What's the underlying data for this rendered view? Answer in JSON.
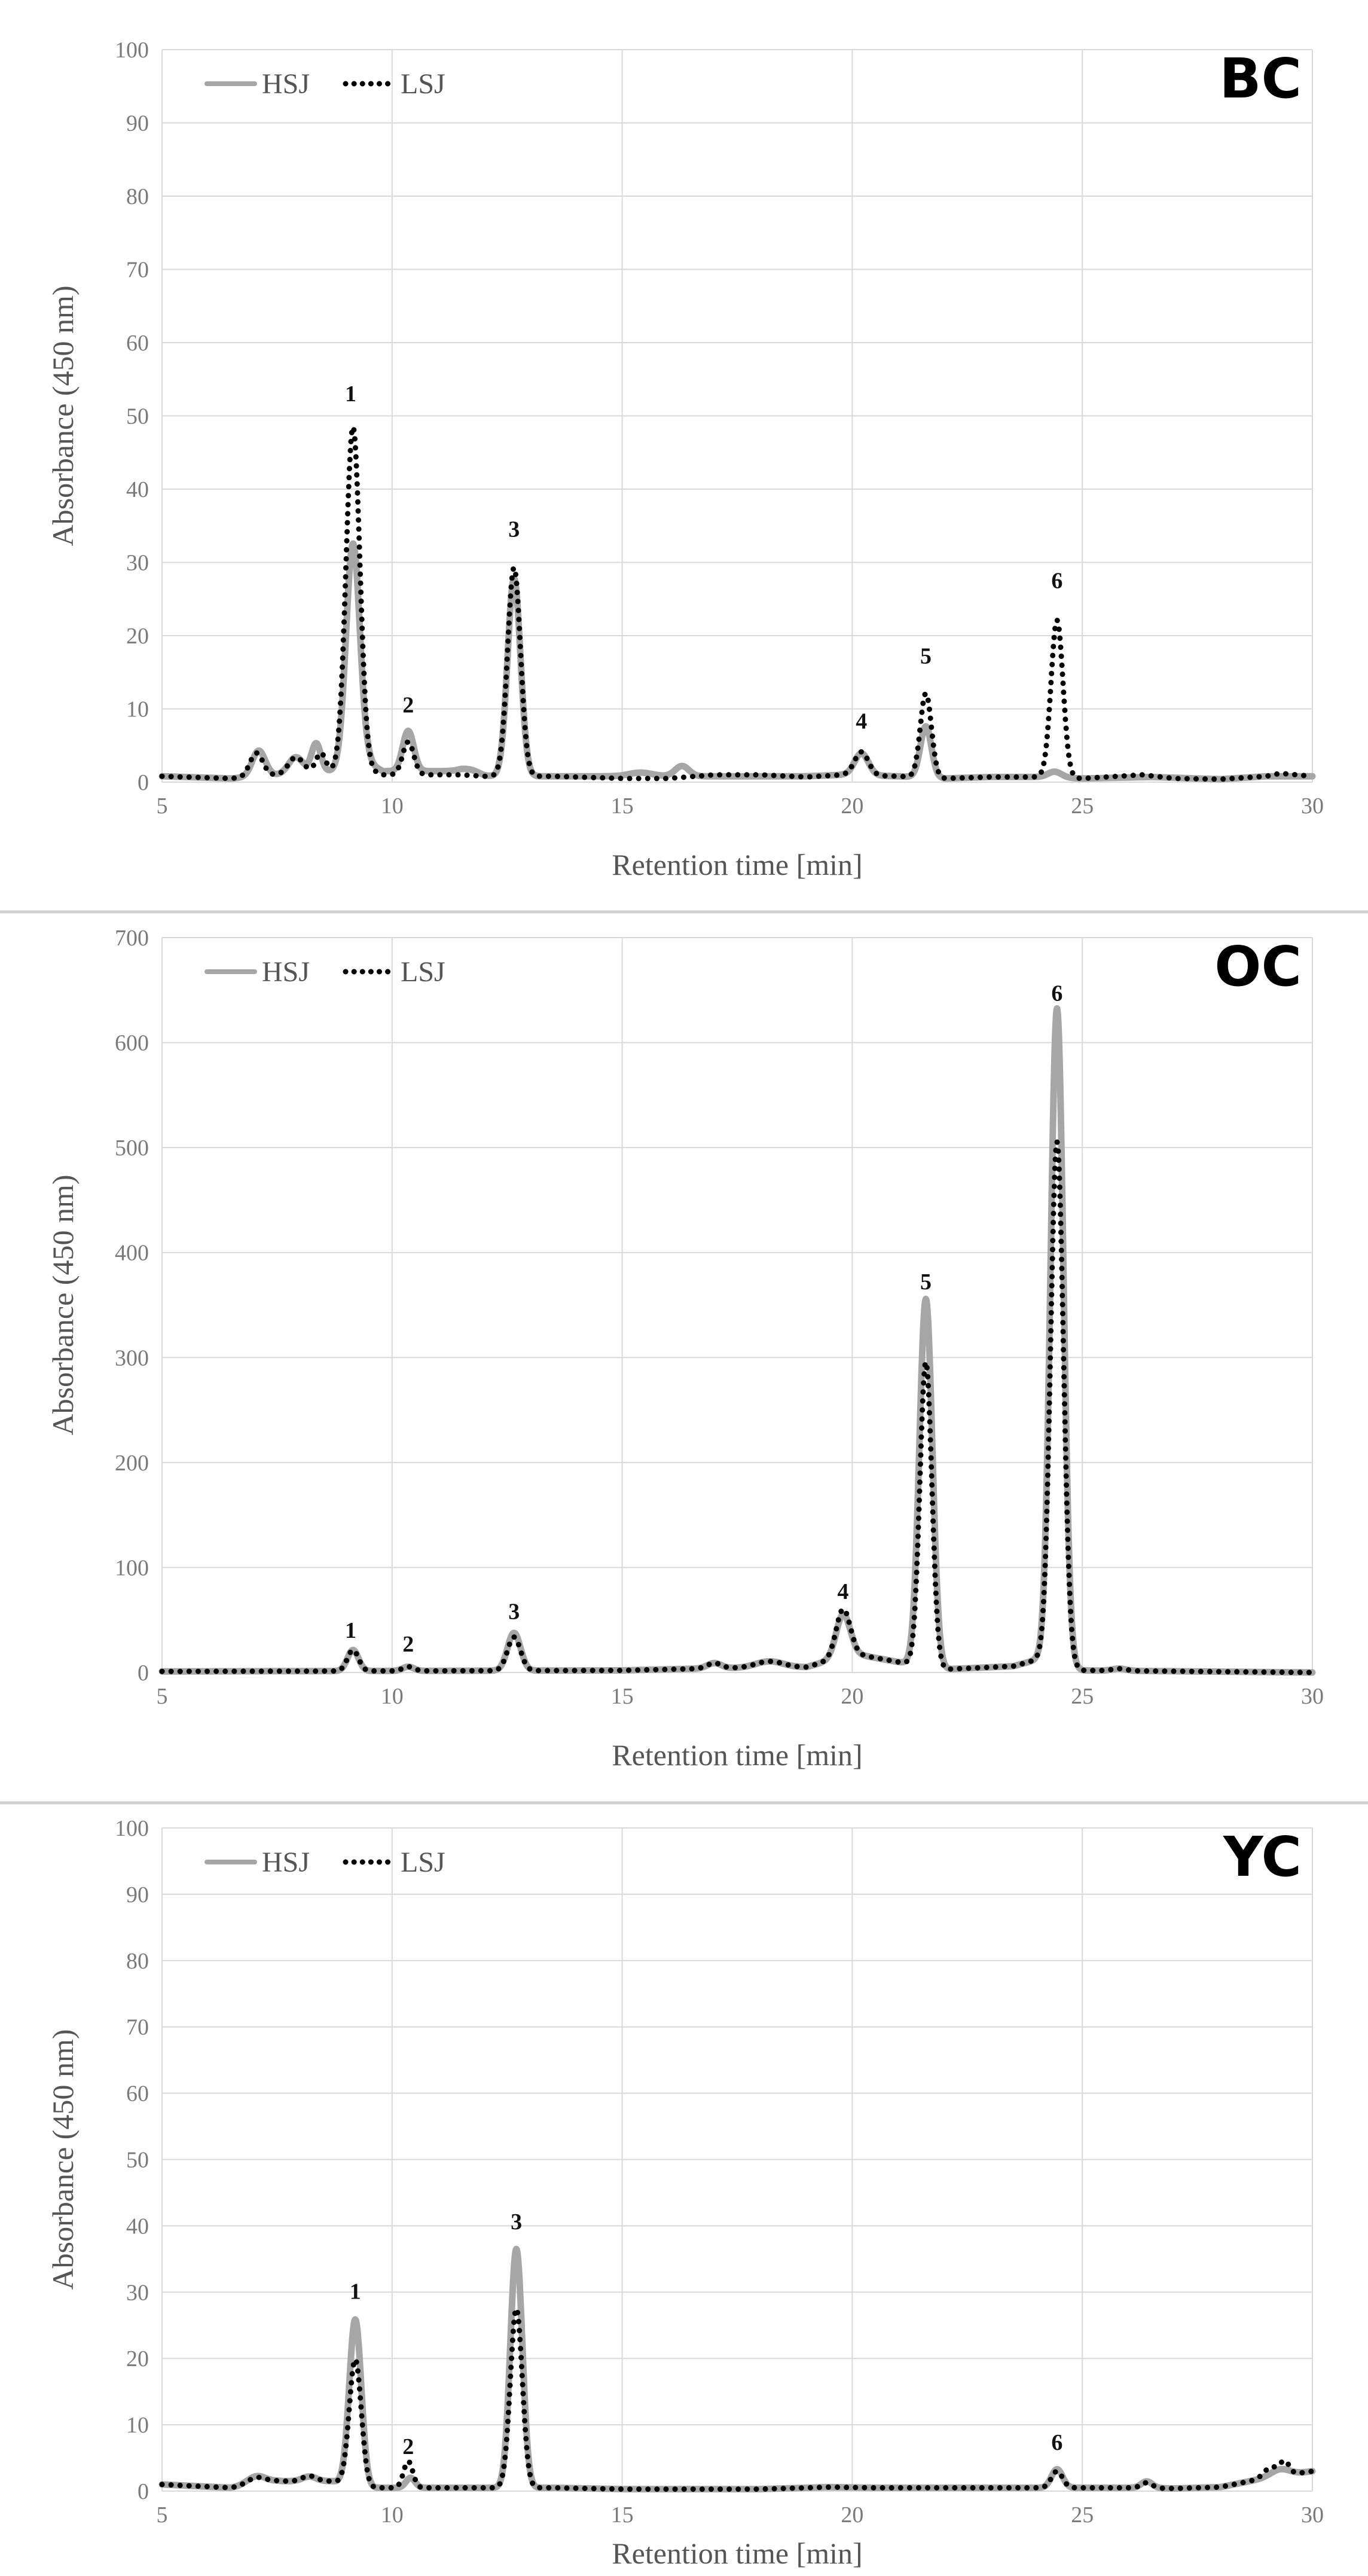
{
  "figure": {
    "description_free": true,
    "colors": {
      "hsj": "#a6a6a6",
      "lsj": "#000000",
      "grid": "#d9d9d9",
      "separator": "#d0d0d0"
    }
  },
  "chart_data": [
    {
      "type": "line",
      "title": "BC",
      "xlabel": "Retention time [min]",
      "ylabel": "Absorbance (450 nm)",
      "xlim": [
        5,
        30
      ],
      "ylim": [
        0,
        100
      ],
      "xticks": [
        5,
        10,
        15,
        20,
        25,
        30
      ],
      "yticks": [
        0,
        10,
        20,
        30,
        40,
        50,
        60,
        70,
        80,
        90,
        100
      ],
      "grid": true,
      "legend": {
        "position": "top-left",
        "entries": [
          "HSJ",
          "LSJ"
        ]
      },
      "series": [
        {
          "name": "HSJ",
          "style": "solid",
          "baseline": [
            [
              5.0,
              0.8
            ],
            [
              6.5,
              0.5
            ],
            [
              7.5,
              1.0
            ],
            [
              8.0,
              1.5
            ],
            [
              8.7,
              1.5
            ],
            [
              9.5,
              2.5
            ],
            [
              9.8,
              1.5
            ],
            [
              10.8,
              1.5
            ],
            [
              11.5,
              1.5
            ],
            [
              12.0,
              0.8
            ],
            [
              13.5,
              0.8
            ],
            [
              15.0,
              0.8
            ],
            [
              16.0,
              0.8
            ],
            [
              17.0,
              0.8
            ],
            [
              19.0,
              0.8
            ],
            [
              19.8,
              1.0
            ],
            [
              21.0,
              0.8
            ],
            [
              22.0,
              0.5
            ],
            [
              23.0,
              0.7
            ],
            [
              24.0,
              0.7
            ],
            [
              25.0,
              0.5
            ],
            [
              26.5,
              0.7
            ],
            [
              28.0,
              0.4
            ],
            [
              29.0,
              0.8
            ],
            [
              30.0,
              0.8
            ]
          ],
          "peaks": [
            [
              7.1,
              3.5,
              0.14
            ],
            [
              7.9,
              2.0,
              0.15
            ],
            [
              8.35,
              3.8,
              0.1
            ],
            [
              9.15,
              30.5,
              0.15
            ],
            [
              10.35,
              5.5,
              0.12
            ],
            [
              11.7,
              0.5,
              0.2
            ],
            [
              12.65,
              27.0,
              0.14
            ],
            [
              15.4,
              0.5,
              0.25
            ],
            [
              16.3,
              1.4,
              0.15
            ],
            [
              20.2,
              3.0,
              0.15
            ],
            [
              21.6,
              7.0,
              0.12
            ],
            [
              24.4,
              0.8,
              0.15
            ]
          ]
        },
        {
          "name": "LSJ",
          "style": "dotted",
          "baseline": [
            [
              5.0,
              0.8
            ],
            [
              6.5,
              0.5
            ],
            [
              7.5,
              1.0
            ],
            [
              8.0,
              1.5
            ],
            [
              8.7,
              1.5
            ],
            [
              9.5,
              1.5
            ],
            [
              9.8,
              1.0
            ],
            [
              10.8,
              1.0
            ],
            [
              11.5,
              1.0
            ],
            [
              12.0,
              0.8
            ],
            [
              13.5,
              0.8
            ],
            [
              15.0,
              0.5
            ],
            [
              16.0,
              0.5
            ],
            [
              17.0,
              1.0
            ],
            [
              18.0,
              1.0
            ],
            [
              19.0,
              0.7
            ],
            [
              19.8,
              1.0
            ],
            [
              21.0,
              0.8
            ],
            [
              22.0,
              0.5
            ],
            [
              23.0,
              0.7
            ],
            [
              24.0,
              0.7
            ],
            [
              25.0,
              0.5
            ],
            [
              26.3,
              1.0
            ],
            [
              27.0,
              0.5
            ],
            [
              28.0,
              0.4
            ],
            [
              29.0,
              0.8
            ],
            [
              29.3,
              1.2
            ],
            [
              30.0,
              0.8
            ]
          ],
          "peaks": [
            [
              7.05,
              3.2,
              0.14
            ],
            [
              7.9,
              2.0,
              0.15
            ],
            [
              8.45,
              2.5,
              0.1
            ],
            [
              9.15,
              47.0,
              0.15
            ],
            [
              10.35,
              4.5,
              0.12
            ],
            [
              12.65,
              28.5,
              0.14
            ],
            [
              20.2,
              3.2,
              0.15
            ],
            [
              21.6,
              11.5,
              0.12
            ],
            [
              24.45,
              21.5,
              0.13
            ]
          ]
        }
      ],
      "peak_labels": [
        {
          "label": "1",
          "x": 9.1,
          "y": 52
        },
        {
          "label": "2",
          "x": 10.35,
          "y": 9.5
        },
        {
          "label": "3",
          "x": 12.65,
          "y": 33.5
        },
        {
          "label": "4",
          "x": 20.2,
          "y": 7.3
        },
        {
          "label": "5",
          "x": 21.6,
          "y": 16.2
        },
        {
          "label": "6",
          "x": 24.45,
          "y": 26.5
        }
      ]
    },
    {
      "type": "line",
      "title": "OC",
      "xlabel": "Retention time [min]",
      "ylabel": "Absorbance (450 nm)",
      "xlim": [
        5,
        30
      ],
      "ylim": [
        0,
        700
      ],
      "xticks": [
        5,
        10,
        15,
        20,
        25,
        30
      ],
      "yticks": [
        0,
        100,
        200,
        300,
        400,
        500,
        600,
        700
      ],
      "grid": true,
      "legend": {
        "position": "top-left",
        "entries": [
          "HSJ",
          "LSJ"
        ]
      },
      "series": [
        {
          "name": "HSJ",
          "style": "solid",
          "baseline": [
            [
              5.0,
              1.0
            ],
            [
              15.0,
              2.0
            ],
            [
              17.0,
              4.0
            ],
            [
              19.0,
              5.0
            ],
            [
              20.0,
              18.0
            ],
            [
              21.0,
              10.0
            ],
            [
              22.0,
              3.0
            ],
            [
              23.5,
              6.0
            ],
            [
              24.0,
              12.0
            ],
            [
              25.0,
              2.0
            ],
            [
              30.0,
              0.0
            ]
          ],
          "peaks": [
            [
              9.15,
              20.0,
              0.12
            ],
            [
              10.35,
              4.0,
              0.12
            ],
            [
              12.65,
              36.0,
              0.14
            ],
            [
              17.0,
              5.0,
              0.15
            ],
            [
              18.2,
              6.0,
              0.3
            ],
            [
              19.8,
              40.0,
              0.15
            ],
            [
              21.6,
              350.0,
              0.14
            ],
            [
              24.45,
              625.0,
              0.14
            ],
            [
              25.8,
              2.0,
              0.15
            ]
          ]
        },
        {
          "name": "LSJ",
          "style": "dotted",
          "baseline": [
            [
              5.0,
              1.0
            ],
            [
              15.0,
              2.0
            ],
            [
              17.0,
              4.0
            ],
            [
              19.0,
              5.0
            ],
            [
              20.0,
              18.0
            ],
            [
              21.0,
              10.0
            ],
            [
              22.0,
              3.0
            ],
            [
              23.5,
              6.0
            ],
            [
              24.0,
              12.0
            ],
            [
              25.0,
              2.0
            ],
            [
              30.0,
              0.0
            ]
          ],
          "peaks": [
            [
              9.15,
              20.0,
              0.12
            ],
            [
              10.35,
              4.0,
              0.12
            ],
            [
              12.65,
              32.0,
              0.14
            ],
            [
              17.0,
              5.0,
              0.15
            ],
            [
              18.2,
              6.0,
              0.3
            ],
            [
              19.8,
              45.0,
              0.15
            ],
            [
              21.6,
              290.0,
              0.13
            ],
            [
              24.45,
              498.0,
              0.14
            ],
            [
              25.8,
              2.0,
              0.15
            ]
          ]
        }
      ],
      "peak_labels": [
        {
          "label": "1",
          "x": 9.1,
          "y": 33
        },
        {
          "label": "2",
          "x": 10.35,
          "y": 20
        },
        {
          "label": "3",
          "x": 12.65,
          "y": 51
        },
        {
          "label": "4",
          "x": 19.8,
          "y": 70
        },
        {
          "label": "5",
          "x": 21.6,
          "y": 365
        },
        {
          "label": "6",
          "x": 24.45,
          "y": 640
        }
      ]
    },
    {
      "type": "line",
      "title": "YC",
      "xlabel": "Retention time [min]",
      "ylabel": "Absorbance (450 nm)",
      "xlim": [
        5,
        30
      ],
      "ylim": [
        0,
        100
      ],
      "xticks": [
        5,
        10,
        15,
        20,
        25,
        30
      ],
      "yticks": [
        0,
        10,
        20,
        30,
        40,
        50,
        60,
        70,
        80,
        90,
        100
      ],
      "grid": true,
      "legend": {
        "position": "top-left",
        "entries": [
          "HSJ",
          "LSJ"
        ]
      },
      "series": [
        {
          "name": "HSJ",
          "style": "solid",
          "baseline": [
            [
              5.0,
              1.0
            ],
            [
              6.5,
              0.5
            ],
            [
              7.5,
              1.5
            ],
            [
              8.0,
              1.5
            ],
            [
              8.7,
              1.5
            ],
            [
              9.5,
              0.5
            ],
            [
              10.8,
              0.5
            ],
            [
              12.0,
              0.5
            ],
            [
              13.5,
              0.5
            ],
            [
              15.0,
              0.3
            ],
            [
              18.0,
              0.3
            ],
            [
              19.5,
              0.6
            ],
            [
              20.5,
              0.5
            ],
            [
              22.0,
              0.5
            ],
            [
              24.0,
              0.5
            ],
            [
              25.0,
              0.5
            ],
            [
              26.0,
              0.5
            ],
            [
              27.0,
              0.4
            ],
            [
              28.0,
              0.6
            ],
            [
              29.0,
              2.0
            ],
            [
              30.0,
              3.0
            ]
          ],
          "peaks": [
            [
              7.05,
              1.2,
              0.2
            ],
            [
              8.2,
              0.7,
              0.15
            ],
            [
              9.2,
              25.0,
              0.13
            ],
            [
              10.4,
              1.5,
              0.1
            ],
            [
              12.7,
              36.0,
              0.13
            ],
            [
              24.45,
              2.8,
              0.12
            ],
            [
              26.4,
              1.0,
              0.12
            ],
            [
              29.3,
              1.0,
              0.2
            ]
          ]
        },
        {
          "name": "LSJ",
          "style": "dotted",
          "baseline": [
            [
              5.0,
              1.0
            ],
            [
              6.5,
              0.5
            ],
            [
              7.5,
              1.5
            ],
            [
              8.0,
              1.5
            ],
            [
              8.7,
              1.5
            ],
            [
              9.5,
              0.5
            ],
            [
              10.8,
              0.5
            ],
            [
              12.0,
              0.5
            ],
            [
              13.5,
              0.5
            ],
            [
              15.0,
              0.3
            ],
            [
              18.0,
              0.3
            ],
            [
              19.5,
              0.6
            ],
            [
              20.5,
              0.5
            ],
            [
              22.0,
              0.5
            ],
            [
              24.0,
              0.5
            ],
            [
              25.0,
              0.5
            ],
            [
              26.0,
              0.5
            ],
            [
              27.0,
              0.4
            ],
            [
              28.0,
              0.6
            ],
            [
              29.0,
              2.0
            ],
            [
              30.0,
              3.0
            ]
          ],
          "peaks": [
            [
              7.05,
              1.0,
              0.2
            ],
            [
              8.2,
              0.8,
              0.15
            ],
            [
              9.2,
              19.0,
              0.13
            ],
            [
              10.35,
              4.0,
              0.1
            ],
            [
              12.7,
              27.0,
              0.13
            ],
            [
              24.45,
              2.5,
              0.12
            ],
            [
              26.4,
              0.8,
              0.12
            ],
            [
              29.1,
              1.5,
              0.15
            ],
            [
              29.4,
              2.0,
              0.1
            ]
          ]
        }
      ],
      "peak_labels": [
        {
          "label": "1",
          "x": 9.2,
          "y": 29
        },
        {
          "label": "2",
          "x": 10.35,
          "y": 5.6
        },
        {
          "label": "3",
          "x": 12.7,
          "y": 39.5
        },
        {
          "label": "6",
          "x": 24.45,
          "y": 6.2
        }
      ]
    }
  ]
}
